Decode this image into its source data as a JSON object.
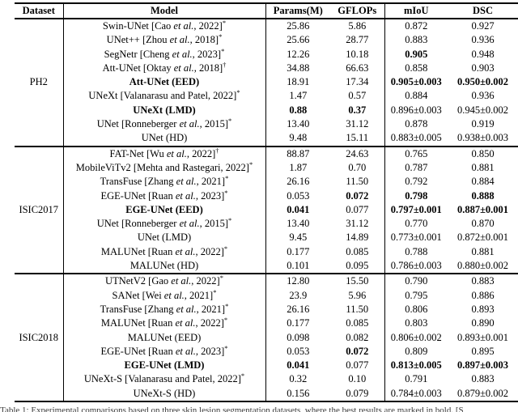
{
  "table": {
    "headers": [
      "Dataset",
      "Model",
      "Params(M)",
      "GFLOPs",
      "mIoU",
      "DSC"
    ],
    "sections": [
      {
        "dataset": "PH2",
        "rows": [
          {
            "model": {
              "text": "Swin-UNet [Cao et al., 2022]",
              "sup": "*",
              "bold": false
            },
            "cells": [
              {
                "v": "25.86"
              },
              {
                "v": "5.86"
              },
              {
                "v": "0.872"
              },
              {
                "v": "0.927"
              }
            ]
          },
          {
            "model": {
              "text": "UNet++ [Zhou et al., 2018]",
              "sup": "*",
              "bold": false
            },
            "cells": [
              {
                "v": "25.66"
              },
              {
                "v": "28.77"
              },
              {
                "v": "0.883"
              },
              {
                "v": "0.936"
              }
            ]
          },
          {
            "model": {
              "text": "SegNetr [Cheng et al., 2023]",
              "sup": "*",
              "bold": false
            },
            "cells": [
              {
                "v": "12.26"
              },
              {
                "v": "10.18"
              },
              {
                "v": "0.905",
                "b": true
              },
              {
                "v": "0.948"
              }
            ]
          },
          {
            "model": {
              "text": "Att-UNet [Oktay et al., 2018]",
              "sup": "†",
              "bold": false
            },
            "cells": [
              {
                "v": "34.88"
              },
              {
                "v": "66.63"
              },
              {
                "v": "0.858"
              },
              {
                "v": "0.903"
              }
            ]
          },
          {
            "model": {
              "text": "Att-UNet (EED)",
              "sup": "",
              "bold": true
            },
            "cells": [
              {
                "v": "18.91"
              },
              {
                "v": "17.34"
              },
              {
                "v": "0.905±0.003",
                "b": true
              },
              {
                "v": "0.950±0.002",
                "b": true
              }
            ]
          },
          {
            "model": {
              "text": "UNeXt [Valanarasu and Patel, 2022]",
              "sup": "*",
              "bold": false
            },
            "cells": [
              {
                "v": "1.47"
              },
              {
                "v": "0.57"
              },
              {
                "v": "0.884"
              },
              {
                "v": "0.936"
              }
            ]
          },
          {
            "model": {
              "text": "UNeXt (LMD)",
              "sup": "",
              "bold": true
            },
            "cells": [
              {
                "v": "0.88",
                "b": true
              },
              {
                "v": "0.37",
                "b": true
              },
              {
                "v": "0.896±0.003"
              },
              {
                "v": "0.945±0.002"
              }
            ]
          },
          {
            "model": {
              "text": "UNet [Ronneberger et al., 2015]",
              "sup": "*",
              "bold": false
            },
            "cells": [
              {
                "v": "13.40"
              },
              {
                "v": "31.12"
              },
              {
                "v": "0.878"
              },
              {
                "v": "0.919"
              }
            ]
          },
          {
            "model": {
              "text": "UNet (HD)",
              "sup": "",
              "bold": false
            },
            "cells": [
              {
                "v": "9.48"
              },
              {
                "v": "15.11"
              },
              {
                "v": "0.883±0.005"
              },
              {
                "v": "0.938±0.003"
              }
            ]
          }
        ]
      },
      {
        "dataset": "ISIC2017",
        "rows": [
          {
            "model": {
              "text": "FAT-Net [Wu et al., 2022]",
              "sup": "†",
              "bold": false
            },
            "cells": [
              {
                "v": "88.87"
              },
              {
                "v": "24.63"
              },
              {
                "v": "0.765"
              },
              {
                "v": "0.850"
              }
            ]
          },
          {
            "model": {
              "text": "MobileViTv2 [Mehta and Rastegari, 2022]",
              "sup": "*",
              "bold": false
            },
            "cells": [
              {
                "v": "1.87"
              },
              {
                "v": "0.70"
              },
              {
                "v": "0.787"
              },
              {
                "v": "0.881"
              }
            ]
          },
          {
            "model": {
              "text": "TransFuse [Zhang et al., 2021]",
              "sup": "*",
              "bold": false
            },
            "cells": [
              {
                "v": "26.16"
              },
              {
                "v": "11.50"
              },
              {
                "v": "0.792"
              },
              {
                "v": "0.884"
              }
            ]
          },
          {
            "model": {
              "text": "EGE-UNet [Ruan et al., 2023]",
              "sup": "*",
              "bold": false
            },
            "cells": [
              {
                "v": "0.053"
              },
              {
                "v": "0.072",
                "b": true
              },
              {
                "v": "0.798",
                "b": true
              },
              {
                "v": "0.888",
                "b": true
              }
            ]
          },
          {
            "model": {
              "text": "EGE-UNet (EED)",
              "sup": "",
              "bold": true
            },
            "cells": [
              {
                "v": "0.041",
                "b": true
              },
              {
                "v": "0.077"
              },
              {
                "v": "0.797±0.001",
                "b": true
              },
              {
                "v": "0.887±0.001",
                "b": true
              }
            ]
          },
          {
            "model": {
              "text": "UNet [Ronneberger et al., 2015]",
              "sup": "*",
              "bold": false
            },
            "cells": [
              {
                "v": "13.40"
              },
              {
                "v": "31.12"
              },
              {
                "v": "0.770"
              },
              {
                "v": "0.870"
              }
            ]
          },
          {
            "model": {
              "text": "UNet (LMD)",
              "sup": "",
              "bold": false
            },
            "cells": [
              {
                "v": "9.45"
              },
              {
                "v": "14.89"
              },
              {
                "v": "0.773±0.001"
              },
              {
                "v": "0.872±0.001"
              }
            ]
          },
          {
            "model": {
              "text": "MALUNet [Ruan et al., 2022]",
              "sup": "*",
              "bold": false
            },
            "cells": [
              {
                "v": "0.177"
              },
              {
                "v": "0.085"
              },
              {
                "v": "0.788"
              },
              {
                "v": "0.881"
              }
            ]
          },
          {
            "model": {
              "text": "MALUNet (HD)",
              "sup": "",
              "bold": false
            },
            "cells": [
              {
                "v": "0.101"
              },
              {
                "v": "0.095"
              },
              {
                "v": "0.786±0.003"
              },
              {
                "v": "0.880±0.002"
              }
            ]
          }
        ]
      },
      {
        "dataset": "ISIC2018",
        "rows": [
          {
            "model": {
              "text": "UTNetV2 [Gao et al., 2022]",
              "sup": "*",
              "bold": false
            },
            "cells": [
              {
                "v": "12.80"
              },
              {
                "v": "15.50"
              },
              {
                "v": "0.790"
              },
              {
                "v": "0.883"
              }
            ]
          },
          {
            "model": {
              "text": "SANet [Wei et al., 2021]",
              "sup": "*",
              "bold": false
            },
            "cells": [
              {
                "v": "23.9"
              },
              {
                "v": "5.96"
              },
              {
                "v": "0.795"
              },
              {
                "v": "0.886"
              }
            ]
          },
          {
            "model": {
              "text": "TransFuse [Zhang et al., 2021]",
              "sup": "*",
              "bold": false
            },
            "cells": [
              {
                "v": "26.16"
              },
              {
                "v": "11.50"
              },
              {
                "v": "0.806"
              },
              {
                "v": "0.893"
              }
            ]
          },
          {
            "model": {
              "text": "MALUNet [Ruan et al., 2022]",
              "sup": "*",
              "bold": false
            },
            "cells": [
              {
                "v": "0.177"
              },
              {
                "v": "0.085"
              },
              {
                "v": "0.803"
              },
              {
                "v": "0.890"
              }
            ]
          },
          {
            "model": {
              "text": "MALUNet (EED)",
              "sup": "",
              "bold": false
            },
            "cells": [
              {
                "v": "0.098"
              },
              {
                "v": "0.082"
              },
              {
                "v": "0.806±0.002"
              },
              {
                "v": "0.893±0.001"
              }
            ]
          },
          {
            "model": {
              "text": "EGE-UNet [Ruan et al., 2023]",
              "sup": "*",
              "bold": false
            },
            "cells": [
              {
                "v": "0.053"
              },
              {
                "v": "0.072",
                "b": true
              },
              {
                "v": "0.809"
              },
              {
                "v": "0.895"
              }
            ]
          },
          {
            "model": {
              "text": "EGE-UNet (LMD)",
              "sup": "",
              "bold": true
            },
            "cells": [
              {
                "v": "0.041",
                "b": true
              },
              {
                "v": "0.077"
              },
              {
                "v": "0.813±0.005",
                "b": true
              },
              {
                "v": "0.897±0.003",
                "b": true
              }
            ]
          },
          {
            "model": {
              "text": "UNeXt-S [Valanarasu and Patel, 2022]",
              "sup": "*",
              "bold": false
            },
            "cells": [
              {
                "v": "0.32"
              },
              {
                "v": "0.10"
              },
              {
                "v": "0.791"
              },
              {
                "v": "0.883"
              }
            ]
          },
          {
            "model": {
              "text": "UNeXt-S (HD)",
              "sup": "",
              "bold": false
            },
            "cells": [
              {
                "v": "0.156"
              },
              {
                "v": "0.079"
              },
              {
                "v": "0.784±0.003"
              },
              {
                "v": "0.879±0.002"
              }
            ]
          }
        ]
      }
    ]
  },
  "caption": {
    "text": "Table 1: Experimental comparisons based on three skin lesion segmentation datasets, where the best results are marked in bold. [S"
  }
}
